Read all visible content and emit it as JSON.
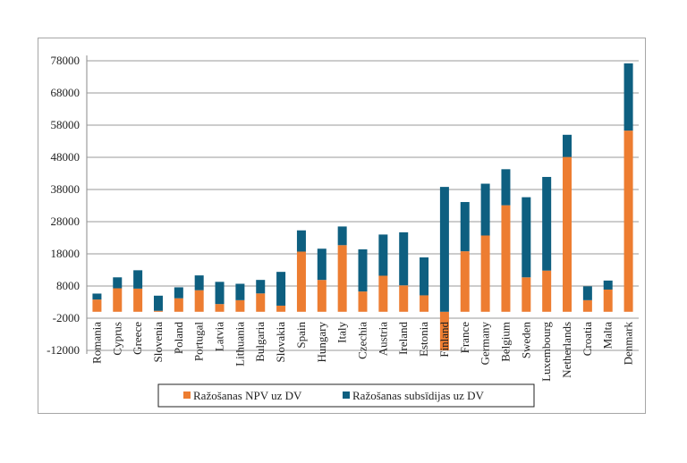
{
  "chart_data": {
    "type": "bar",
    "stacked": true,
    "title": "",
    "xlabel": "",
    "ylabel": "",
    "ylim": [
      -12000,
      78000
    ],
    "yticks": [
      78000,
      68000,
      58000,
      48000,
      38000,
      28000,
      18000,
      8000,
      -2000,
      -12000
    ],
    "grid": true,
    "legend_position": "bottom",
    "categories": [
      "Romania",
      "Cyprus",
      "Greece",
      "Slovenia",
      "Poland",
      "Portugal",
      "Latvia",
      "Lithuania",
      "Bulgaria",
      "Slovakia",
      "Spain",
      "Hungary",
      "Italy",
      "Czechia",
      "Austria",
      "Ireland",
      "Estonia",
      "Finland",
      "France",
      "Germany",
      "Belgium",
      "Sweden",
      "Luxembourg",
      "Netherlands",
      "Croatia",
      "Malta",
      "Denmark"
    ],
    "series": [
      {
        "name": "Ražošanas NPV uz DV",
        "color": "#ed7d31",
        "values": [
          3800,
          7300,
          7200,
          300,
          4200,
          6700,
          2400,
          3600,
          5700,
          1900,
          18700,
          9900,
          20700,
          6300,
          11200,
          8200,
          5100,
          -12000,
          18800,
          23700,
          33100,
          10700,
          12800,
          48100,
          3600,
          6900,
          56300
        ]
      },
      {
        "name": "Ražošanas subsīdijas uz DV",
        "color": "#0e5f80",
        "values": [
          1850,
          3400,
          5700,
          4700,
          3400,
          4600,
          6900,
          5100,
          4200,
          10500,
          6600,
          9700,
          5800,
          13100,
          12800,
          16500,
          11800,
          38800,
          15300,
          16100,
          11200,
          24900,
          29100,
          6900,
          4300,
          2800,
          20900
        ]
      }
    ]
  }
}
